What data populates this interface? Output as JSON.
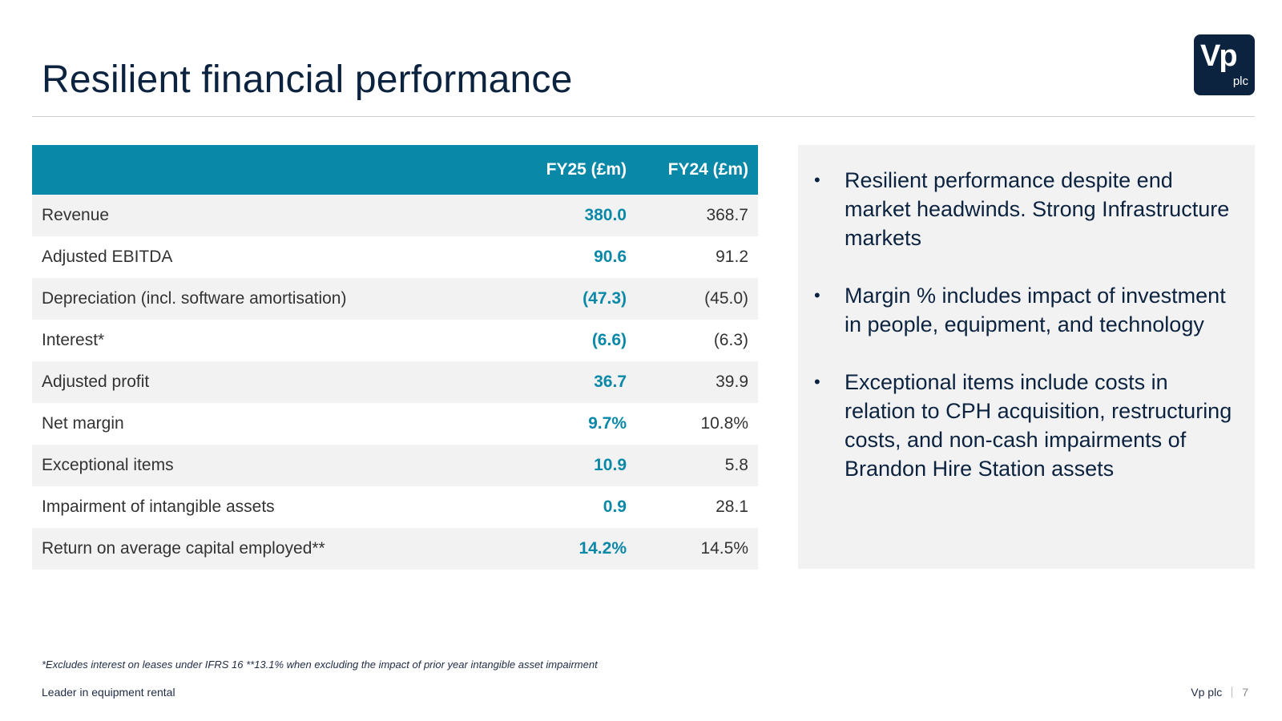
{
  "slide": {
    "title": "Resilient financial performance",
    "logo": {
      "main": "Vp",
      "sub": "plc"
    }
  },
  "table": {
    "headers": [
      "",
      "FY25 (£m)",
      "FY24 (£m)"
    ],
    "rows": [
      {
        "label": "Revenue",
        "fy25": "380.0",
        "fy24": "368.7"
      },
      {
        "label": "Adjusted EBITDA",
        "fy25": "90.6",
        "fy24": "91.2"
      },
      {
        "label": "Depreciation (incl. software amortisation)",
        "fy25": "(47.3)",
        "fy24": "(45.0)"
      },
      {
        "label": "Interest*",
        "fy25": "(6.6)",
        "fy24": "(6.3)"
      },
      {
        "label": "Adjusted profit",
        "fy25": "36.7",
        "fy24": "39.9"
      },
      {
        "label": "Net margin",
        "fy25": "9.7%",
        "fy24": "10.8%"
      },
      {
        "label": "Exceptional items",
        "fy25": "10.9",
        "fy24": "5.8"
      },
      {
        "label": "Impairment of intangible assets",
        "fy25": "0.9",
        "fy24": "28.1"
      },
      {
        "label": "Return on average capital employed**",
        "fy25": "14.2%",
        "fy24": "14.5%"
      }
    ]
  },
  "panel": {
    "bullets": [
      "Resilient performance despite end market headwinds. Strong Infrastructure markets",
      "Margin % includes impact of investment in people, equipment, and technology",
      "Exceptional items include costs in relation to CPH acquisition, restructuring costs, and non-cash impairments of Brandon Hire Station assets"
    ]
  },
  "footnote": "*Excludes interest on leases under IFRS 16   **13.1% when excluding the impact of prior year intangible asset impairment",
  "footer": {
    "tagline": "Leader in equipment rental",
    "company": "Vp plc",
    "page": "7"
  },
  "colors": {
    "navy": "#0c2340",
    "teal": "#0a88a7",
    "row_shade": "#f2f2f2"
  }
}
